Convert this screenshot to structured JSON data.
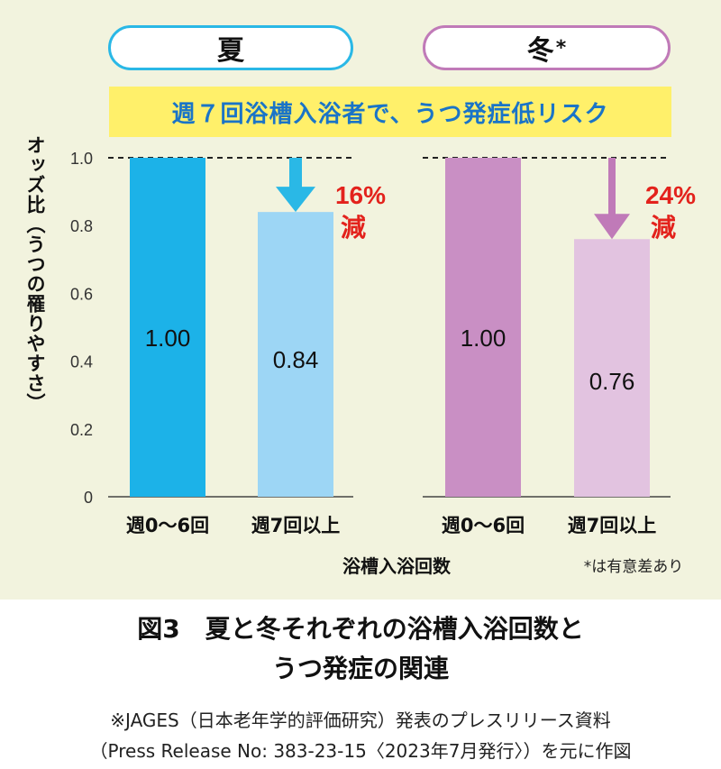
{
  "panels": {
    "summer": {
      "label": "夏"
    },
    "winter": {
      "label": "冬",
      "mark": "*"
    }
  },
  "banner": "週７回浴槽入浴者で、うつ発症低リスク",
  "note": "*は有意差あり",
  "caption": {
    "line1": "図3　夏と冬それぞれの浴槽入浴回数と",
    "line2": "うつ発症の関連"
  },
  "source": {
    "line1": "※JAGES（日本老年学的評価研究）発表のプレスリリース資料",
    "line2": "（Press Release No: 383-23-15〈2023年7月発行〉）を元に作図"
  },
  "colors": {
    "summer_high": "#1cb2e8",
    "summer_low": "#9dd6f5",
    "summer_arrow": "#2ab8e6",
    "winter_high": "#c98fc4",
    "winter_low": "#e2c3e0",
    "winter_arrow": "#c07ab8",
    "reduction_text": "#e3221c"
  },
  "chart_data": {
    "type": "bar",
    "ylabel": "オッズ比（うつの罹りやすさ）",
    "xlabel": "浴槽入浴回数",
    "ylim": [
      0,
      1.0
    ],
    "yticks": [
      "0",
      "0.2",
      "0.4",
      "0.6",
      "0.8",
      "1.0"
    ],
    "ytick_values": [
      0,
      0.2,
      0.4,
      0.6,
      0.8,
      1.0
    ],
    "reference_line": 1.0,
    "groups": [
      {
        "name": "summer",
        "categories": [
          "週0〜6回",
          "週7回以上"
        ],
        "values": [
          1.0,
          0.84
        ],
        "labels": [
          "1.00",
          "0.84"
        ],
        "reduction": {
          "pct": "16%",
          "word": "減"
        }
      },
      {
        "name": "winter",
        "categories": [
          "週0〜6回",
          "週7回以上"
        ],
        "values": [
          1.0,
          0.76
        ],
        "labels": [
          "1.00",
          "0.76"
        ],
        "reduction": {
          "pct": "24%",
          "word": "減"
        }
      }
    ]
  }
}
